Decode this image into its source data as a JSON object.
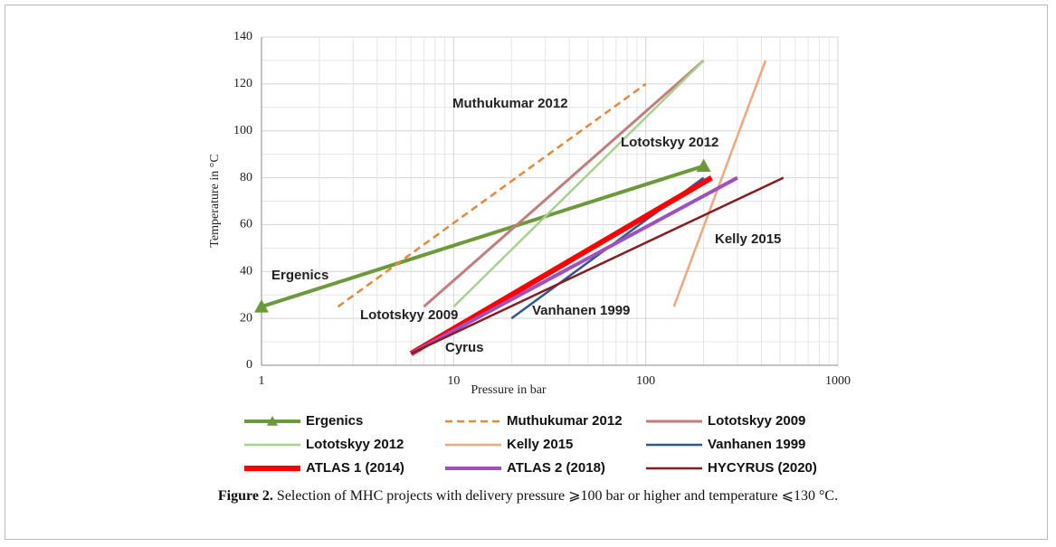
{
  "chart_data": {
    "type": "line",
    "x_label": "Pressure in bar",
    "y_label": "Temperature  in °C",
    "xscale": "log",
    "xlim": [
      1,
      1000
    ],
    "xticks": [
      1,
      10,
      100,
      1000
    ],
    "ylim": [
      0,
      140
    ],
    "yticks": [
      0,
      20,
      40,
      60,
      80,
      100,
      120,
      140
    ],
    "grid": true,
    "series": [
      {
        "name": "Ergenics",
        "color": "#6b9a3b",
        "marker": "triangle",
        "x": [
          1,
          200
        ],
        "values": [
          25,
          85
        ]
      },
      {
        "name": "Muthukumar 2012",
        "color": "#e58a3c",
        "line_style": "dashed",
        "x": [
          2.5,
          100
        ],
        "values": [
          25,
          120
        ]
      },
      {
        "name": "Lototskyy 2009",
        "color": "#c27d7c",
        "x": [
          7,
          200
        ],
        "values": [
          25,
          130
        ]
      },
      {
        "name": "Lototskyy 2012",
        "color": "#a9d18e",
        "x": [
          10,
          200
        ],
        "values": [
          25,
          130
        ]
      },
      {
        "name": "Kelly 2015",
        "color": "#f4a67b",
        "x": [
          140,
          420
        ],
        "values": [
          25,
          130
        ]
      },
      {
        "name": "Vanhanen 1999",
        "color": "#2f5597",
        "x": [
          20,
          200
        ],
        "values": [
          20,
          80
        ]
      },
      {
        "name": "ATLAS 1 (2014)",
        "color": "#ff0000",
        "x": [
          6,
          220
        ],
        "values": [
          5,
          80
        ]
      },
      {
        "name": "ATLAS 2 (2018)",
        "color": "#9e4fc0",
        "x": [
          6,
          300
        ],
        "values": [
          5,
          80
        ]
      },
      {
        "name": "HYCYRUS (2020)",
        "color": "#8b1a1f",
        "x": [
          6,
          520
        ],
        "values": [
          5,
          80
        ]
      }
    ],
    "annotations": [
      "Muthukumar 2012",
      "Lototskyy 2012",
      "Ergenics",
      "Lototskyy 2009",
      "Vanhanen 1999",
      "Cyrus",
      "Kelly 2015"
    ]
  },
  "caption": {
    "label": "Figure 2.",
    "text": " Selection of MHC projects with delivery pressure ⩾100 bar or higher and temperature ⩽130 °C."
  }
}
